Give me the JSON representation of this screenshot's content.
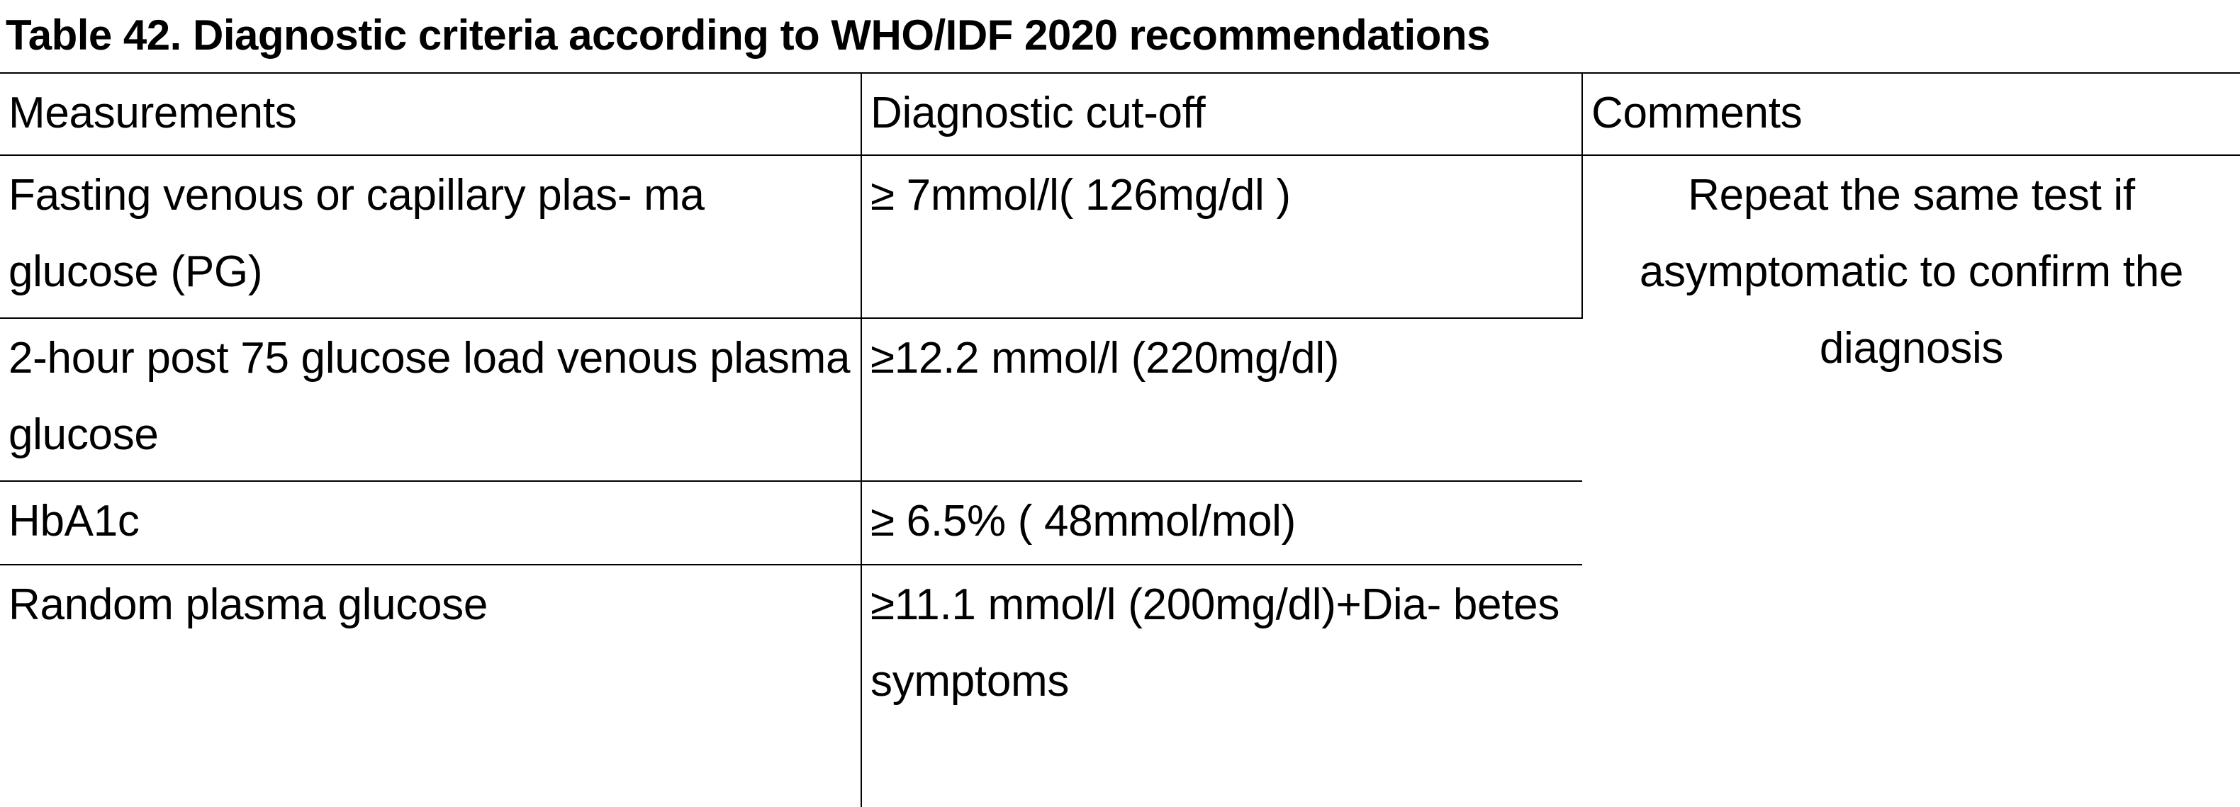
{
  "title": "Table 42. Diagnostic criteria according to WHO/IDF 2020 recommendations",
  "columns": [
    "Measurements",
    "Diagnostic cut-off",
    "Comments"
  ],
  "rows": [
    {
      "measurement": "Fasting venous or capillary plas- ma glucose (PG)",
      "cutoff": "≥ 7mmol/l( 126mg/dl )"
    },
    {
      "measurement": "2-hour post 75 glucose load venous plasma glucose",
      "cutoff": "≥12.2 mmol/l (220mg/dl)"
    },
    {
      "measurement": "HbA1c",
      "cutoff": "≥ 6.5% ( 48mmol/mol)"
    },
    {
      "measurement": "Random plasma glucose",
      "cutoff": "≥11.1 mmol/l (200mg/dl)+Dia- betes symptoms"
    }
  ],
  "comment": "Repeat the same test if asymptomatic to confirm the diagnosis"
}
